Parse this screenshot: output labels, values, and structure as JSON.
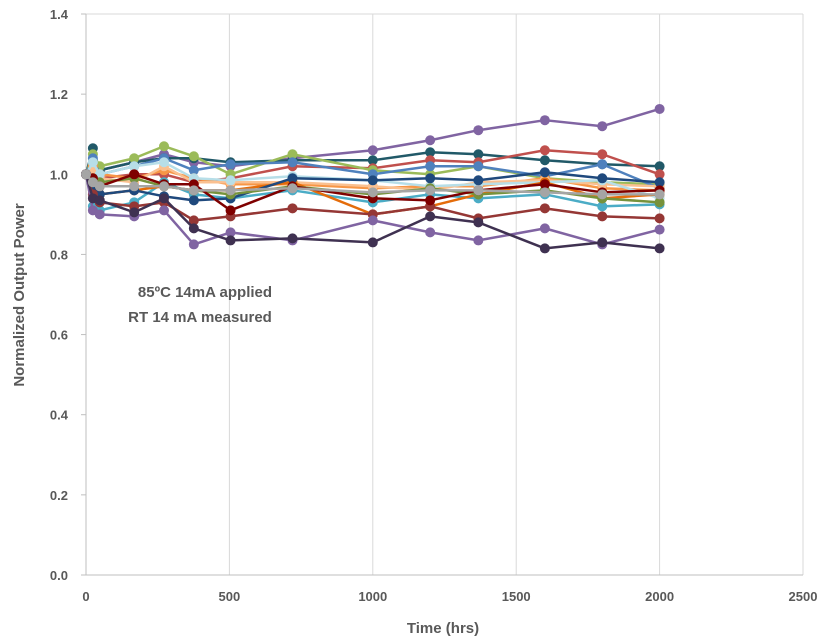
{
  "chart_data": {
    "type": "line",
    "title": "",
    "xlabel": "Time (hrs)",
    "ylabel": "Normalized Output  Power",
    "xlim": [
      0,
      2500
    ],
    "ylim": [
      0,
      1.4
    ],
    "xticks": [
      "0",
      "500",
      "1000",
      "1500",
      "2000",
      "2500"
    ],
    "yticks": [
      "0.0",
      "0.2",
      "0.4",
      "0.6",
      "0.8",
      "1.0",
      "1.2",
      "1.4"
    ],
    "grid": "vertical",
    "legend": "none",
    "annotations": [
      "85ºC 14mA applied",
      "RT 14 mA measured"
    ],
    "x": [
      0,
      24,
      48,
      168,
      272,
      376,
      504,
      720,
      1000,
      1200,
      1368,
      1600,
      1800,
      2000
    ],
    "series": [
      {
        "color": "#8064a2",
        "values": [
          1.0,
          1.02,
          1.01,
          1.03,
          1.05,
          1.03,
          1.02,
          1.04,
          1.06,
          1.085,
          1.11,
          1.135,
          1.12,
          1.163
        ]
      },
      {
        "color": "#215968",
        "values": [
          1.0,
          1.065,
          1.01,
          1.03,
          1.04,
          1.04,
          1.03,
          1.035,
          1.035,
          1.055,
          1.05,
          1.035,
          1.025,
          1.02
        ]
      },
      {
        "color": "#c0504d",
        "values": [
          1.0,
          1.0,
          0.99,
          1.0,
          1.0,
          0.98,
          0.99,
          1.02,
          1.015,
          1.035,
          1.03,
          1.06,
          1.05,
          1.0
        ]
      },
      {
        "color": "#9bbb59",
        "values": [
          1.0,
          1.05,
          1.02,
          1.04,
          1.07,
          1.045,
          1.0,
          1.05,
          1.01,
          1.0,
          1.02,
          0.99,
          0.98,
          0.975
        ]
      },
      {
        "color": "#4f81bd",
        "values": [
          1.0,
          1.04,
          1.0,
          1.02,
          1.04,
          1.01,
          1.025,
          1.03,
          1.0,
          1.02,
          1.02,
          0.995,
          1.025,
          0.965
        ]
      },
      {
        "color": "#f79646",
        "values": [
          1.0,
          1.02,
          1.0,
          0.99,
          1.01,
          0.99,
          0.975,
          0.975,
          0.965,
          0.97,
          0.97,
          0.99,
          0.965,
          0.96
        ]
      },
      {
        "color": "#fac090",
        "values": [
          1.0,
          1.01,
          0.99,
          0.98,
          1.02,
          0.98,
          0.98,
          0.98,
          0.97,
          0.96,
          0.98,
          0.985,
          0.975,
          0.97
        ]
      },
      {
        "color": "#b7dee8",
        "values": [
          1.0,
          1.03,
          1.0,
          1.02,
          1.03,
          0.99,
          0.985,
          0.995,
          0.985,
          0.97,
          0.975,
          0.98,
          0.985,
          0.94
        ]
      },
      {
        "color": "#4bacc6",
        "values": [
          1.0,
          0.92,
          0.91,
          0.93,
          0.98,
          0.95,
          0.94,
          0.96,
          0.93,
          0.95,
          0.94,
          0.95,
          0.92,
          0.925
        ]
      },
      {
        "color": "#e46c0a",
        "values": [
          1.0,
          0.96,
          0.95,
          0.96,
          0.97,
          0.96,
          0.96,
          0.98,
          0.9,
          0.92,
          0.95,
          0.98,
          0.94,
          0.95
        ]
      },
      {
        "color": "#1f497d",
        "values": [
          1.0,
          0.97,
          0.95,
          0.96,
          0.945,
          0.935,
          0.94,
          0.99,
          0.985,
          0.99,
          0.985,
          1.005,
          0.99,
          0.98
        ]
      },
      {
        "color": "#76923c",
        "values": [
          1.0,
          0.99,
          0.98,
          0.99,
          0.97,
          0.96,
          0.95,
          0.97,
          0.95,
          0.965,
          0.95,
          0.96,
          0.94,
          0.93
        ]
      },
      {
        "color": "#953735",
        "values": [
          1.0,
          0.95,
          0.93,
          0.92,
          0.93,
          0.885,
          0.895,
          0.915,
          0.9,
          0.92,
          0.89,
          0.915,
          0.895,
          0.89
        ]
      },
      {
        "color": "#7f0000",
        "values": [
          1.0,
          0.99,
          0.97,
          1.0,
          0.975,
          0.975,
          0.91,
          0.97,
          0.94,
          0.935,
          0.96,
          0.975,
          0.955,
          0.96
        ]
      },
      {
        "color": "#8064a2",
        "values": [
          1.0,
          0.91,
          0.9,
          0.895,
          0.91,
          0.825,
          0.855,
          0.835,
          0.885,
          0.855,
          0.835,
          0.865,
          0.825,
          0.862
        ]
      },
      {
        "color": "#3f3151",
        "values": [
          1.0,
          0.94,
          0.935,
          0.905,
          0.94,
          0.865,
          0.835,
          0.84,
          0.83,
          0.895,
          0.88,
          0.815,
          0.83,
          0.815
        ]
      },
      {
        "color": "#a5a5a5",
        "values": [
          1.0,
          0.98,
          0.97,
          0.97,
          0.97,
          0.96,
          0.96,
          0.965,
          0.955,
          0.96,
          0.96,
          0.955,
          0.95,
          0.95
        ]
      }
    ]
  }
}
